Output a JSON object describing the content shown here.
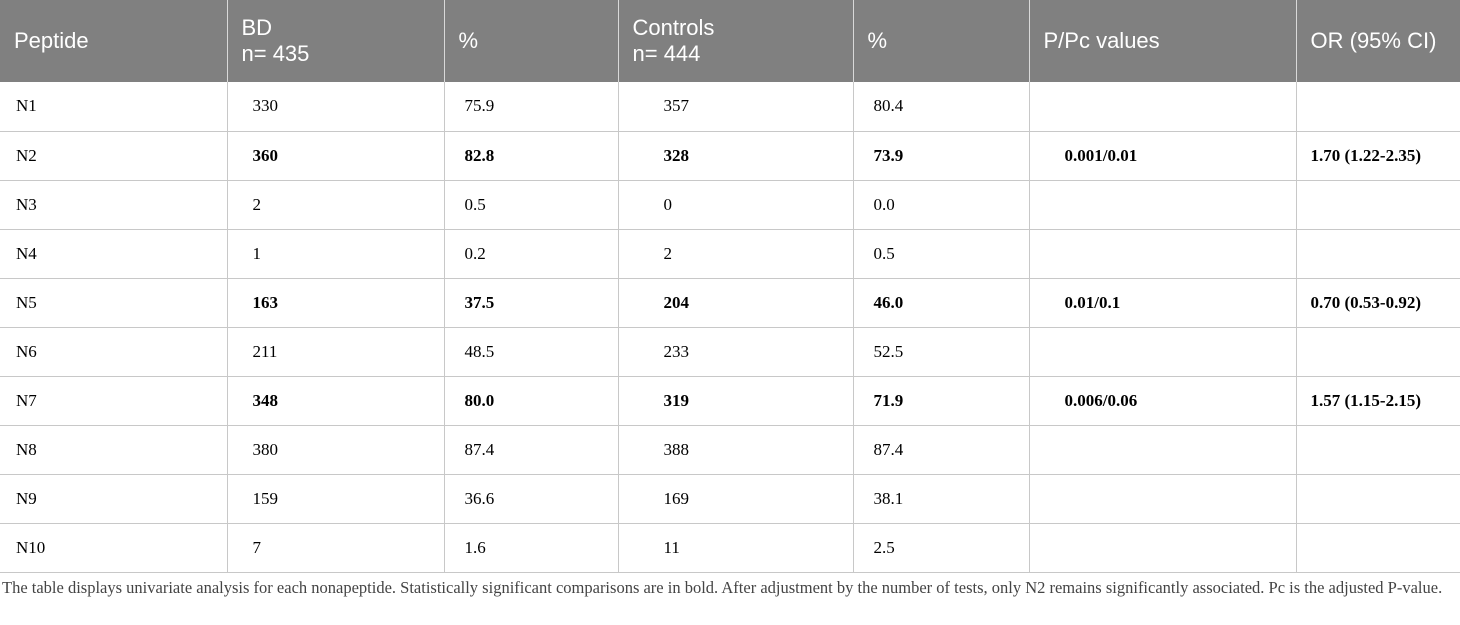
{
  "table": {
    "headers": [
      {
        "lines": [
          "Peptide"
        ]
      },
      {
        "lines": [
          "BD",
          "n= 435"
        ]
      },
      {
        "lines": [
          "%"
        ]
      },
      {
        "lines": [
          "Controls",
          "n= 444"
        ]
      },
      {
        "lines": [
          "%"
        ]
      },
      {
        "lines": [
          "P/Pc values"
        ]
      },
      {
        "lines": [
          "OR (95% CI)"
        ]
      }
    ],
    "rows": [
      {
        "peptide": "N1",
        "bd": "330",
        "bd_pct": "75.9",
        "controls": "357",
        "controls_pct": "80.4",
        "p_pc": "",
        "or_ci": "",
        "significant": false
      },
      {
        "peptide": "N2",
        "bd": "360",
        "bd_pct": "82.8",
        "controls": "328",
        "controls_pct": "73.9",
        "p_pc": "0.001/0.01",
        "or_ci": "1.70 (1.22-2.35)",
        "significant": true
      },
      {
        "peptide": "N3",
        "bd": "2",
        "bd_pct": "0.5",
        "controls": "0",
        "controls_pct": "0.0",
        "p_pc": "",
        "or_ci": "",
        "significant": false
      },
      {
        "peptide": "N4",
        "bd": "1",
        "bd_pct": "0.2",
        "controls": "2",
        "controls_pct": "0.5",
        "p_pc": "",
        "or_ci": "",
        "significant": false
      },
      {
        "peptide": "N5",
        "bd": "163",
        "bd_pct": "37.5",
        "controls": "204",
        "controls_pct": "46.0",
        "p_pc": "0.01/0.1",
        "or_ci": "0.70 (0.53-0.92)",
        "significant": true
      },
      {
        "peptide": "N6",
        "bd": "211",
        "bd_pct": "48.5",
        "controls": "233",
        "controls_pct": "52.5",
        "p_pc": "",
        "or_ci": "",
        "significant": false
      },
      {
        "peptide": "N7",
        "bd": "348",
        "bd_pct": "80.0",
        "controls": "319",
        "controls_pct": "71.9",
        "p_pc": "0.006/0.06",
        "or_ci": "1.57 (1.15-2.15)",
        "significant": true
      },
      {
        "peptide": "N8",
        "bd": "380",
        "bd_pct": "87.4",
        "controls": "388",
        "controls_pct": "87.4",
        "p_pc": "",
        "or_ci": "",
        "significant": false
      },
      {
        "peptide": "N9",
        "bd": "159",
        "bd_pct": "36.6",
        "controls": "169",
        "controls_pct": "38.1",
        "p_pc": "",
        "or_ci": "",
        "significant": false
      },
      {
        "peptide": "N10",
        "bd": "7",
        "bd_pct": "1.6",
        "controls": "11",
        "controls_pct": "2.5",
        "p_pc": "",
        "or_ci": "",
        "significant": false
      }
    ]
  },
  "footnote": "The table displays univariate analysis for each nonapeptide. Statistically significant comparisons are in bold. After adjustment by the number of tests, only N2 remains significantly associated. Pc is the adjusted P-value."
}
